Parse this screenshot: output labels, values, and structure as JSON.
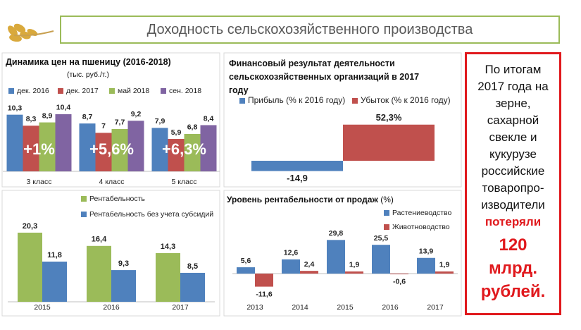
{
  "title": "Доходность сельскохозяйственного производства",
  "chart_data": [
    {
      "type": "bar",
      "title": "Динамика цен на пшеницу (2016-2018)",
      "subtitle": "(тыс. руб./т.)",
      "categories": [
        "3 класс",
        "4 класс",
        "5 класс"
      ],
      "series": [
        {
          "name": "дек. 2016",
          "color": "#4f81bd",
          "values": [
            10.3,
            8.7,
            7.9
          ],
          "value_labels": [
            "10,3",
            "8,7",
            "7,9"
          ]
        },
        {
          "name": "дек. 2017",
          "color": "#c0504d",
          "values": [
            8.3,
            7,
            5.9
          ],
          "value_labels": [
            "8,3",
            "7",
            "5,9"
          ]
        },
        {
          "name": "май 2018",
          "color": "#9bbb59",
          "values": [
            8.9,
            7.7,
            6.8
          ],
          "value_labels": [
            "8,9",
            "7,7",
            "6,8"
          ]
        },
        {
          "name": "сен. 2018",
          "color": "#8064a2",
          "values": [
            10.4,
            9.2,
            8.4
          ],
          "value_labels": [
            "10,4",
            "9,2",
            "8,4"
          ]
        }
      ],
      "annotations": [
        "+1%",
        "+5,6%",
        "+6,3%"
      ]
    },
    {
      "type": "bar",
      "title": "Финансовый результат деятельности сельскохозяйственных организаций в 2017 году",
      "categories": [
        null
      ],
      "series": [
        {
          "name": "Прибыль (% к 2016 году)",
          "color": "#4f81bd",
          "values": [
            -14.9
          ],
          "value_labels": [
            "-14,9"
          ]
        },
        {
          "name": "Убыток (% к 2016 году)",
          "color": "#c0504d",
          "values": [
            52.3
          ],
          "value_labels": [
            "52,3%"
          ]
        }
      ]
    },
    {
      "type": "bar",
      "categories": [
        "2015",
        "2016",
        "2017"
      ],
      "series": [
        {
          "name": "Рентабельность",
          "color": "#9bbb59",
          "values": [
            20.3,
            16.4,
            14.3
          ],
          "value_labels": [
            "20,3",
            "16,4",
            "14,3"
          ]
        },
        {
          "name": "Рентабельность без учета субсидий",
          "color": "#4f81bd",
          "values": [
            11.8,
            9.3,
            8.5
          ],
          "value_labels": [
            "11,8",
            "9,3",
            "8,5"
          ]
        }
      ]
    },
    {
      "type": "bar",
      "title": "Уровень рентабельности от продаж",
      "subtitle": "(%)",
      "categories": [
        "2013",
        "2014",
        "2015",
        "2016",
        "2017"
      ],
      "series": [
        {
          "name": "Растениеводство",
          "color": "#4f81bd",
          "values": [
            5.6,
            12.6,
            29.8,
            25.5,
            13.9
          ],
          "value_labels": [
            "5,6",
            "12,6",
            "29,8",
            "25,5",
            "13,9"
          ]
        },
        {
          "name": "Животноводство",
          "color": "#c0504d",
          "values": [
            -11.6,
            2.4,
            1.9,
            -0.6,
            1.9
          ],
          "value_labels": [
            "-11,6",
            "2,4",
            "1,9",
            "-0,6",
            "1,9"
          ]
        }
      ]
    }
  ],
  "callout": {
    "text": "По итогам 2017 года на зерне, сахарной свекле и кукурузе российские товаропро-изводители",
    "highlight": "потеряли",
    "amount": "120 млрд. рублей."
  }
}
